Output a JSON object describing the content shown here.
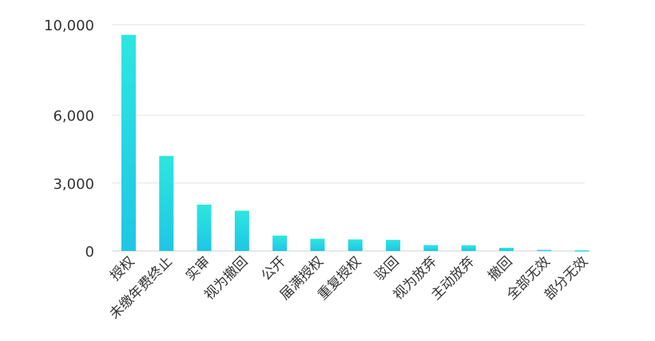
{
  "chart_data": {
    "type": "bar",
    "categories": [
      "授权",
      "未缴年费终止",
      "实审",
      "视为撤回",
      "公开",
      "届满授权",
      "重复授权",
      "驳回",
      "视为放弃",
      "主动放弃",
      "撤回",
      "全部无效",
      "部分无效"
    ],
    "values": [
      9550,
      4200,
      2050,
      1780,
      680,
      540,
      510,
      490,
      260,
      250,
      140,
      50,
      30
    ],
    "y_ticks": [
      {
        "value": 0,
        "label": "0"
      },
      {
        "value": 3000,
        "label": "3,000"
      },
      {
        "value": 6000,
        "label": "6,000"
      },
      {
        "value": 10000,
        "label": "10,000"
      }
    ],
    "ylim": [
      0,
      10000
    ],
    "title": "",
    "xlabel": "",
    "ylabel": "",
    "grid": true,
    "colors": {
      "bar_top": "#2de6df",
      "bar_bottom": "#1fc6e5"
    }
  }
}
